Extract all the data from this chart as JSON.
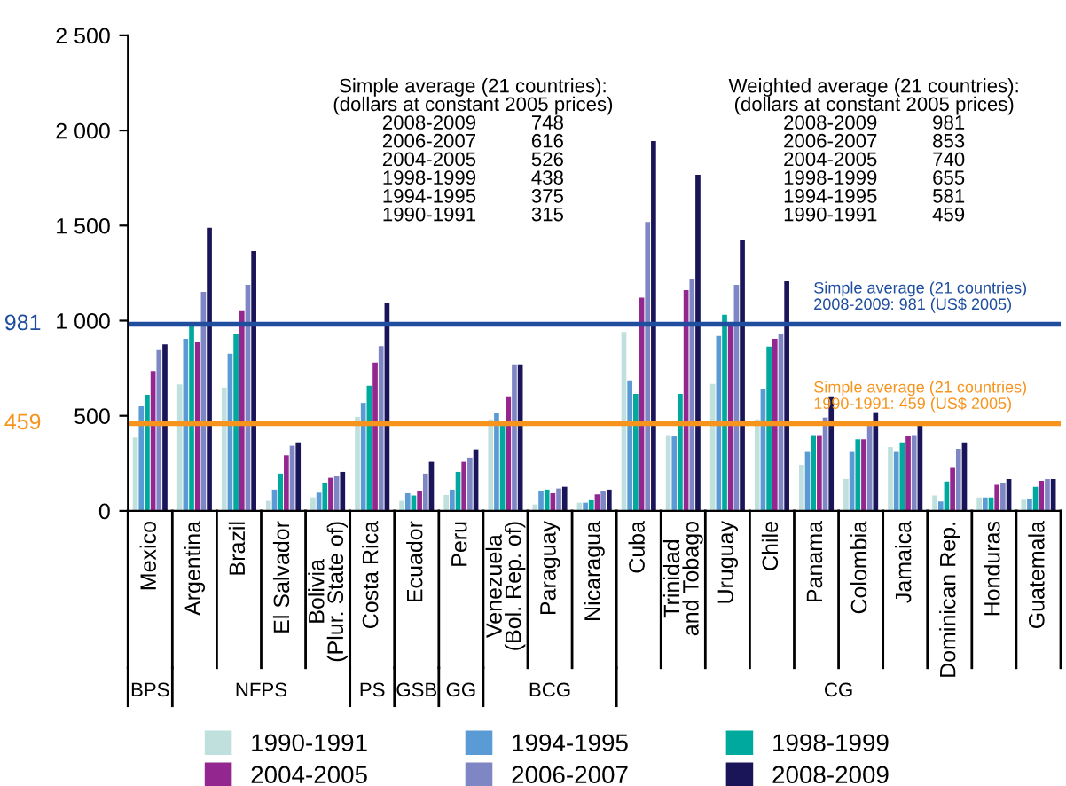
{
  "chart_data": {
    "type": "bar",
    "categories": [
      "Mexico",
      "Argentina",
      "Brazil",
      "El Salvador",
      "Bolivia\n(Plur. State of)",
      "Costa Rica",
      "Ecuador",
      "Peru",
      "Venezuela\n(Bol. Rep. of)",
      "Paraguay",
      "Nicaragua",
      "Cuba",
      "Trinidad\nand Tobago",
      "Uruguay",
      "Chile",
      "Panama",
      "Colombia",
      "Jamaica",
      "Dominican Rep.",
      "Honduras",
      "Guatemala"
    ],
    "series": [
      {
        "name": "1990-1991",
        "color": "#bfe0dd",
        "values": [
          385,
          665,
          649,
          53,
          71,
          494,
          53,
          84,
          481,
          34,
          43,
          941,
          398,
          668,
          481,
          242,
          168,
          335,
          81,
          71,
          59
        ]
      },
      {
        "name": "1994-1995",
        "color": "#5b9bd5",
        "values": [
          550,
          904,
          826,
          112,
          96,
          568,
          93,
          112,
          515,
          106,
          43,
          686,
          391,
          919,
          640,
          314,
          314,
          314,
          50,
          71,
          62
        ]
      },
      {
        "name": "1998-1999",
        "color": "#00a99d",
        "values": [
          610,
          975,
          929,
          196,
          149,
          658,
          81,
          205,
          475,
          112,
          56,
          615,
          615,
          1031,
          863,
          398,
          376,
          360,
          155,
          71,
          127
        ]
      },
      {
        "name": "2004-2005",
        "color": "#93278f",
        "values": [
          735,
          888,
          1050,
          292,
          174,
          780,
          106,
          258,
          602,
          93,
          87,
          1121,
          1161,
          988,
          904,
          398,
          376,
          391,
          230,
          137,
          158
        ]
      },
      {
        "name": "2006-2007",
        "color": "#7f86c4",
        "values": [
          850,
          1152,
          1189,
          342,
          186,
          866,
          196,
          280,
          770,
          118,
          102,
          1519,
          1217,
          1189,
          929,
          491,
          447,
          398,
          326,
          149,
          168
        ]
      },
      {
        "name": "2008-2009",
        "color": "#1a1458",
        "values": [
          875,
          1488,
          1366,
          360,
          205,
          1096,
          258,
          323,
          770,
          127,
          112,
          1944,
          1767,
          1422,
          1208,
          602,
          519,
          447,
          360,
          168,
          168
        ]
      }
    ],
    "ylim": [
      0,
      2500
    ],
    "yticks": [
      0,
      500,
      {
        "value": 1000,
        "label": "1 000"
      },
      {
        "value": 1500,
        "label": "1 500"
      },
      {
        "value": 2000,
        "label": "2 000"
      },
      {
        "value": 2500,
        "label": "2 500"
      }
    ],
    "ref_lines": [
      {
        "axis": "y",
        "value": 981,
        "label": "981",
        "color": "#1f4e9e"
      },
      {
        "axis": "y",
        "value": 459,
        "label": "459",
        "color": "#f7941d"
      }
    ],
    "annotations": [
      "Simple average (21 countries):\n(dollars at constant 2005 prices)\n2008-2009          748\n2006-2007          616\n2004-2005          526\n1998-1999          438\n1994-1995          375\n1990-1991          315",
      "Weighted average (21 countries):\n(dollars at constant 2005 prices)\n2008-2009          981\n2006-2007          853\n2004-2005          740\n1998-1999          655\n1994-1995          581\n1990-1991          459",
      "BPS",
      "NFPS",
      "PS",
      "GSB",
      "GG",
      "BCG",
      "CG",
      {
        "text": "Simple average (21 countries)\n2008-2009: 981 (US$ 2005)",
        "y": 981
      },
      {
        "text": "Simple average (21 countries)\n1990-1991: 459 (US$ 2005)",
        "y": 459
      }
    ],
    "grid": false,
    "legend": "bottom"
  }
}
